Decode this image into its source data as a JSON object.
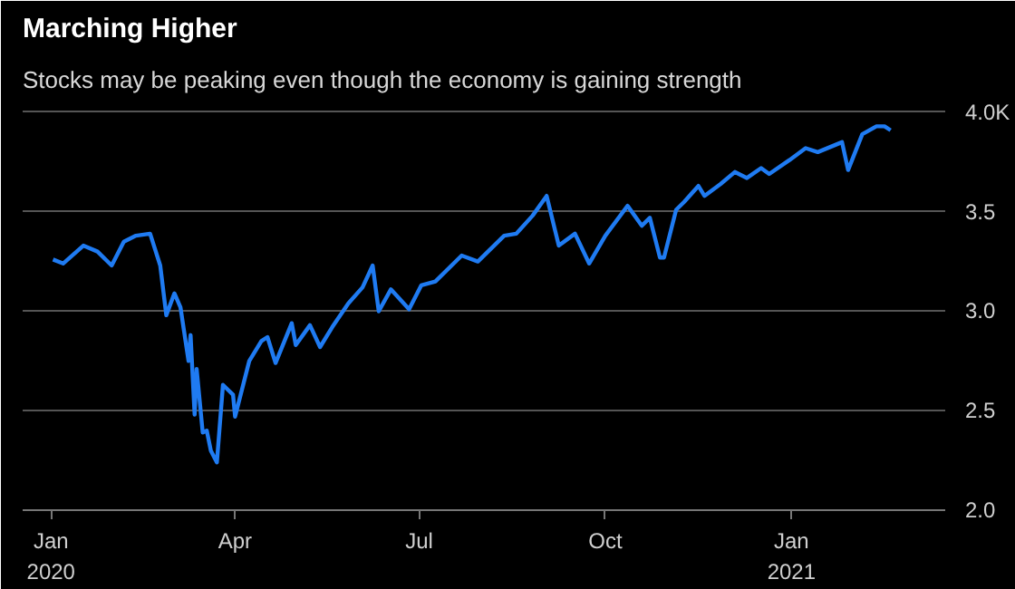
{
  "chart_data": {
    "type": "line",
    "title": "Marching Higher",
    "subtitle": "Stocks may be peaking even though the economy is gaining strength",
    "x": [
      "2020-01-02",
      "2020-01-07",
      "2020-01-17",
      "2020-01-24",
      "2020-01-31",
      "2020-02-06",
      "2020-02-12",
      "2020-02-19",
      "2020-02-24",
      "2020-02-27",
      "2020-03-02",
      "2020-03-05",
      "2020-03-09",
      "2020-03-10",
      "2020-03-12",
      "2020-03-13",
      "2020-03-16",
      "2020-03-18",
      "2020-03-20",
      "2020-03-23",
      "2020-03-26",
      "2020-03-31",
      "2020-04-01",
      "2020-04-08",
      "2020-04-14",
      "2020-04-17",
      "2020-04-21",
      "2020-04-29",
      "2020-05-01",
      "2020-05-08",
      "2020-05-13",
      "2020-05-19",
      "2020-05-27",
      "2020-06-03",
      "2020-06-08",
      "2020-06-11",
      "2020-06-17",
      "2020-06-26",
      "2020-07-02",
      "2020-07-09",
      "2020-07-22",
      "2020-07-30",
      "2020-08-12",
      "2020-08-18",
      "2020-08-26",
      "2020-09-02",
      "2020-09-08",
      "2020-09-16",
      "2020-09-23",
      "2020-10-01",
      "2020-10-12",
      "2020-10-19",
      "2020-10-23",
      "2020-10-28",
      "2020-10-30",
      "2020-11-05",
      "2020-11-09",
      "2020-11-16",
      "2020-11-19",
      "2020-11-27",
      "2020-12-04",
      "2020-12-10",
      "2020-12-17",
      "2020-12-21",
      "2020-12-31",
      "2021-01-08",
      "2021-01-14",
      "2021-01-26",
      "2021-01-29",
      "2021-02-05",
      "2021-02-12",
      "2021-02-16",
      "2021-02-19"
    ],
    "series": [
      {
        "color": "#1f7bf2",
        "values": [
          3.26,
          3.24,
          3.33,
          3.3,
          3.23,
          3.35,
          3.38,
          3.39,
          3.23,
          2.98,
          3.09,
          3.02,
          2.75,
          2.88,
          2.48,
          2.71,
          2.39,
          2.4,
          2.3,
          2.24,
          2.63,
          2.58,
          2.47,
          2.75,
          2.85,
          2.87,
          2.74,
          2.94,
          2.83,
          2.93,
          2.82,
          2.92,
          3.04,
          3.12,
          3.23,
          3.0,
          3.11,
          3.01,
          3.13,
          3.15,
          3.28,
          3.25,
          3.38,
          3.39,
          3.48,
          3.58,
          3.33,
          3.39,
          3.24,
          3.38,
          3.53,
          3.43,
          3.47,
          3.27,
          3.27,
          3.51,
          3.55,
          3.63,
          3.58,
          3.64,
          3.7,
          3.67,
          3.72,
          3.69,
          3.76,
          3.82,
          3.8,
          3.85,
          3.71,
          3.89,
          3.93,
          3.93,
          3.91
        ]
      }
    ],
    "xlim": [
      "2019-12-18",
      "2021-03-18"
    ],
    "xticks": [
      {
        "value": "2020-01-01",
        "label": "Jan\n2020"
      },
      {
        "value": "2020-04-01",
        "label": "Apr"
      },
      {
        "value": "2020-07-01",
        "label": "Jul"
      },
      {
        "value": "2020-10-01",
        "label": "Oct"
      },
      {
        "value": "2021-01-01",
        "label": "Jan\n2021"
      }
    ],
    "ylim": [
      2.0,
      4.05
    ],
    "yticks": [
      {
        "value": 2.0,
        "label": "2.0"
      },
      {
        "value": 2.5,
        "label": "2.5"
      },
      {
        "value": 3.0,
        "label": "3.0"
      },
      {
        "value": 3.5,
        "label": "3.5"
      },
      {
        "value": 4.0,
        "label": "4.0K"
      }
    ],
    "grid": "y",
    "line_style": "solid",
    "marker": "none"
  }
}
